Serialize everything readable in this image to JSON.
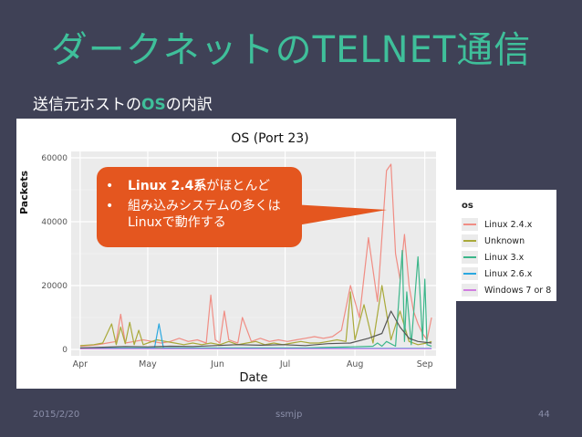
{
  "slide": {
    "title": "ダークネットのTELNET通信",
    "subtitle_pre": "送信元ホストの",
    "subtitle_os": "OS",
    "subtitle_post": "の内訳",
    "footer_date": "2015/2/20",
    "footer_org": "ssmjp",
    "footer_page": "44"
  },
  "callout": {
    "bullet": "•",
    "line1_bold": "Linux 2.4系",
    "line1_rest": "がほとんど",
    "line2": "組み込みシステムの多くはLinuxで動作する"
  },
  "colors": {
    "title": "#3fbf9a",
    "background": "#3f4156",
    "callout": "#e4561f"
  },
  "chart_data": {
    "type": "line",
    "title": "OS (Port 23)",
    "xlabel": "Date",
    "ylabel": "Packets",
    "x_ticks": [
      "Apr",
      "May",
      "Jun",
      "Jul",
      "Aug",
      "Sep"
    ],
    "y_ticks": [
      "0",
      "20000",
      "40000",
      "60000"
    ],
    "ylim": [
      -2000,
      62000
    ],
    "xlim_days": [
      -4,
      158
    ],
    "grid": true,
    "legend_title": "os",
    "legend_position": "right",
    "series": [
      {
        "name": "Linux 2.4.x",
        "color": "#f08d84",
        "x": [
          0,
          4,
          8,
          12,
          16,
          18,
          20,
          24,
          28,
          32,
          36,
          40,
          44,
          48,
          52,
          56,
          58,
          60,
          62,
          64,
          66,
          68,
          70,
          72,
          76,
          80,
          84,
          88,
          92,
          96,
          100,
          104,
          108,
          112,
          116,
          120,
          124,
          128,
          132,
          136,
          138,
          140,
          142,
          144,
          146,
          148,
          150,
          152,
          154,
          156
        ],
        "y": [
          1000,
          1200,
          1500,
          2000,
          2500,
          11000,
          2000,
          2500,
          3000,
          2500,
          2000,
          2500,
          3500,
          2500,
          3000,
          2000,
          17000,
          3000,
          2000,
          12000,
          3000,
          2500,
          2000,
          10000,
          2500,
          3500,
          2500,
          3000,
          2500,
          3000,
          3500,
          4000,
          3500,
          4000,
          6000,
          20000,
          10000,
          35000,
          15000,
          56000,
          58000,
          30000,
          22000,
          36000,
          20000,
          12000,
          8000,
          5000,
          3000,
          10000
        ]
      },
      {
        "name": "Unknown",
        "color": "#a9a93a",
        "x": [
          0,
          6,
          10,
          14,
          16,
          18,
          20,
          22,
          24,
          26,
          28,
          30,
          34,
          38,
          42,
          46,
          50,
          54,
          58,
          62,
          66,
          70,
          74,
          78,
          82,
          86,
          90,
          94,
          98,
          102,
          106,
          110,
          114,
          118,
          120,
          122,
          126,
          130,
          134,
          138,
          142,
          146,
          150,
          154,
          156
        ],
        "y": [
          1200,
          1500,
          2000,
          8000,
          1500,
          7000,
          1800,
          8500,
          1500,
          6000,
          1500,
          2000,
          3000,
          2500,
          2000,
          1500,
          2000,
          1500,
          2000,
          1500,
          2500,
          1500,
          2000,
          2500,
          1500,
          2000,
          1500,
          2000,
          2500,
          2000,
          2000,
          2500,
          3000,
          2500,
          18000,
          3000,
          14000,
          2000,
          20000,
          3000,
          12000,
          2500,
          1500,
          2000,
          2500
        ]
      },
      {
        "name": "Linux 3.x",
        "color": "#3cb68a",
        "x": [
          0,
          20,
          40,
          60,
          80,
          100,
          120,
          130,
          132,
          134,
          136,
          140,
          143,
          144,
          145,
          147,
          150,
          152,
          153,
          154,
          156
        ],
        "y": [
          500,
          500,
          500,
          500,
          500,
          500,
          800,
          1000,
          2000,
          1000,
          2500,
          1000,
          31000,
          2500,
          18000,
          1500,
          29000,
          3000,
          22000,
          1500,
          1000
        ]
      },
      {
        "name": "Linux 2.6.x",
        "color": "#2aa8e0",
        "x": [
          0,
          20,
          30,
          33,
          35,
          37,
          40,
          60,
          80,
          100,
          120,
          140,
          156
        ],
        "y": [
          300,
          300,
          300,
          500,
          8000,
          400,
          300,
          300,
          300,
          300,
          300,
          300,
          300
        ]
      },
      {
        "name": "Windows 7 or 8",
        "color": "#d07ee0",
        "x": [
          0,
          40,
          80,
          120,
          156
        ],
        "y": [
          200,
          200,
          200,
          200,
          200
        ]
      },
      {
        "name": "",
        "color": "#555555",
        "x": [
          0,
          10,
          20,
          30,
          40,
          50,
          60,
          70,
          80,
          90,
          100,
          110,
          120,
          128,
          134,
          138,
          142,
          146,
          150,
          156
        ],
        "y": [
          500,
          700,
          900,
          800,
          1000,
          900,
          1200,
          1500,
          1300,
          1500,
          1200,
          1800,
          2000,
          3500,
          5000,
          12000,
          7000,
          3500,
          2500,
          2000
        ]
      }
    ]
  }
}
